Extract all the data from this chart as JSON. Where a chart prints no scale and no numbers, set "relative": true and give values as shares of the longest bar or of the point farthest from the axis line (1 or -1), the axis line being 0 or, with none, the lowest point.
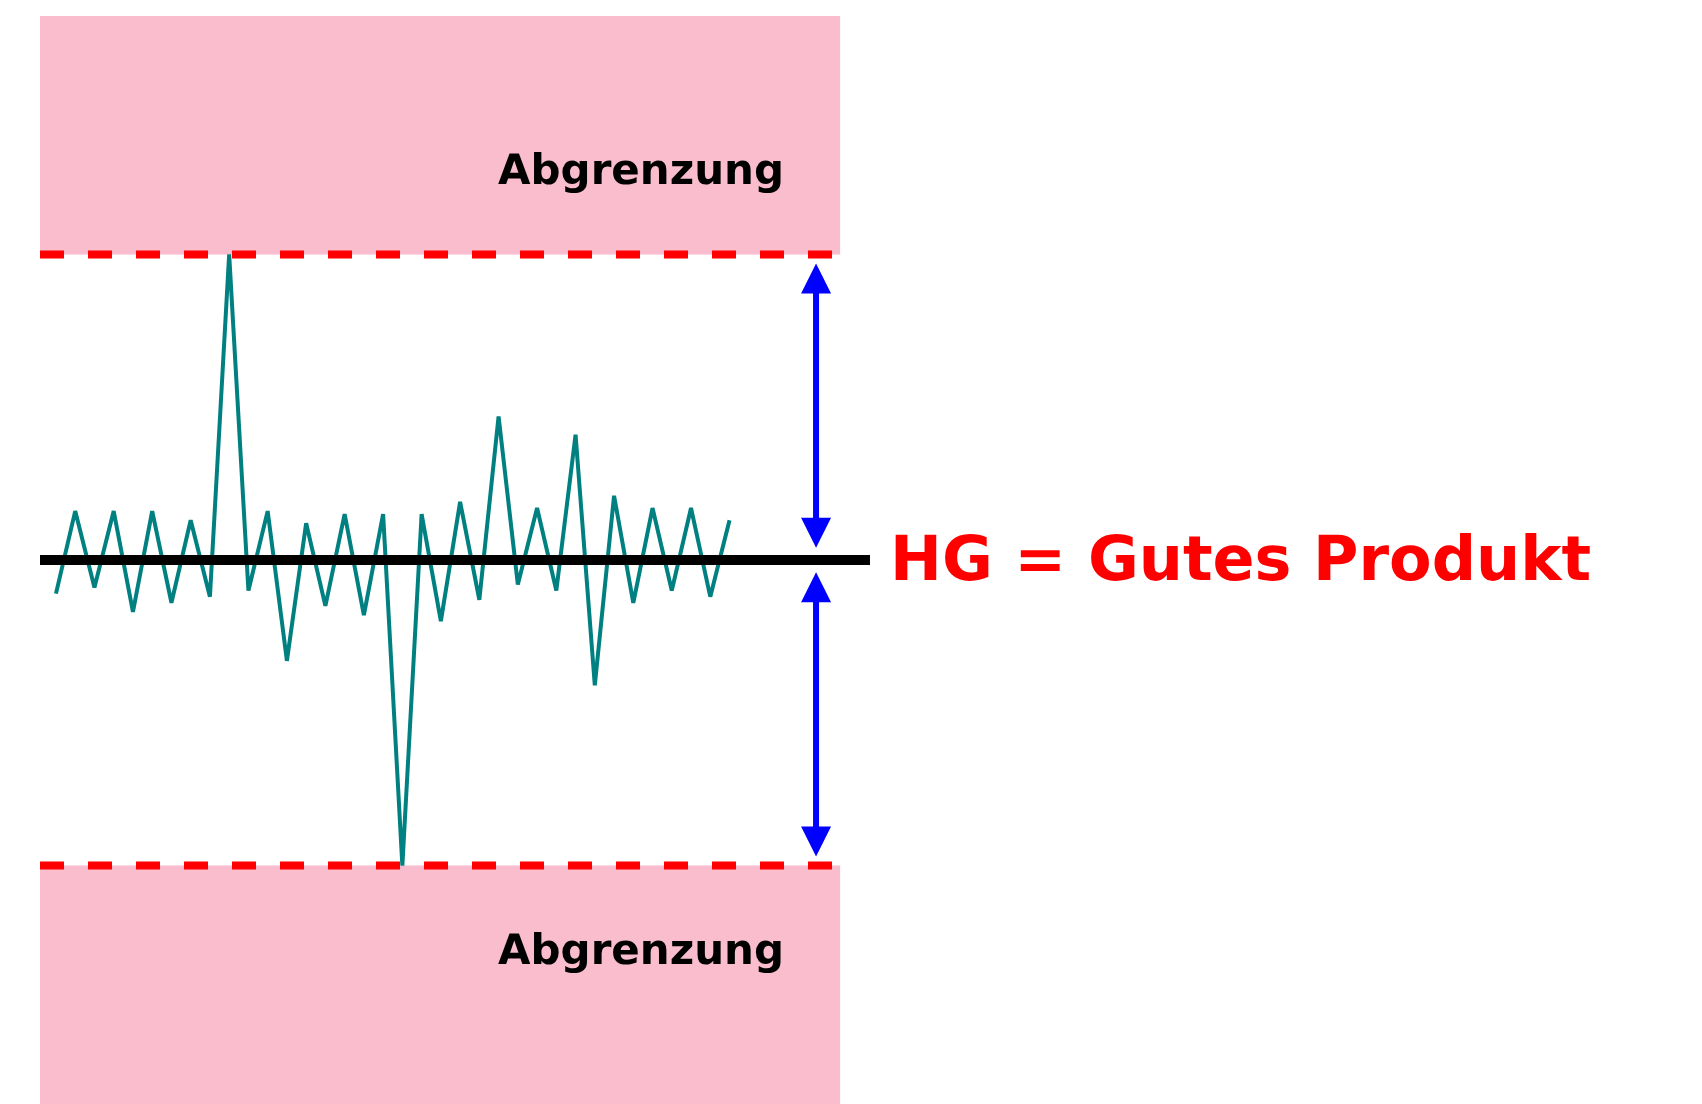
{
  "chart_data": {
    "type": "line",
    "relative": true,
    "categories": [
      null,
      null,
      null,
      null,
      null,
      null,
      null,
      null,
      null,
      null,
      null,
      null,
      null,
      null,
      null,
      null,
      null,
      null,
      null,
      null,
      null,
      null,
      null,
      null,
      null,
      null,
      null,
      null,
      null,
      null,
      null,
      null,
      null,
      null,
      null,
      null
    ],
    "series": [
      {
        "color": "#008080",
        "values": [
          -0.11,
          0.16,
          -0.09,
          0.16,
          -0.17,
          0.16,
          -0.14,
          0.13,
          -0.12,
          1.0,
          -0.1,
          0.16,
          -0.33,
          0.12,
          -0.15,
          0.15,
          -0.18,
          0.15,
          -1.0,
          0.15,
          -0.2,
          0.19,
          -0.13,
          0.47,
          -0.08,
          0.17,
          -0.1,
          0.41,
          -0.41,
          0.21,
          -0.14,
          0.17,
          -0.1,
          0.17,
          -0.12,
          0.13
        ]
      }
    ],
    "ref_lines": [
      {
        "axis": "y",
        "value": 0,
        "label": "HG = Gutes Produkt",
        "color": "#000000",
        "line_style": "solid"
      },
      {
        "axis": "y",
        "value": 1,
        "color": "#ff0000",
        "line_style": "dashed"
      },
      {
        "axis": "y",
        "value": -1,
        "color": "#ff0000",
        "line_style": "dashed"
      }
    ],
    "bands": [
      {
        "axis": "y",
        "from": 1,
        "to": 1.78,
        "label": "Abgrenzung",
        "color": "#f7a1b8"
      },
      {
        "axis": "y",
        "from": -1,
        "to": -1.78,
        "label": "Abgrenzung",
        "color": "#f7a1b8"
      }
    ],
    "tick_labels": false,
    "grid": false,
    "marker": "none",
    "line_style": "solid"
  }
}
